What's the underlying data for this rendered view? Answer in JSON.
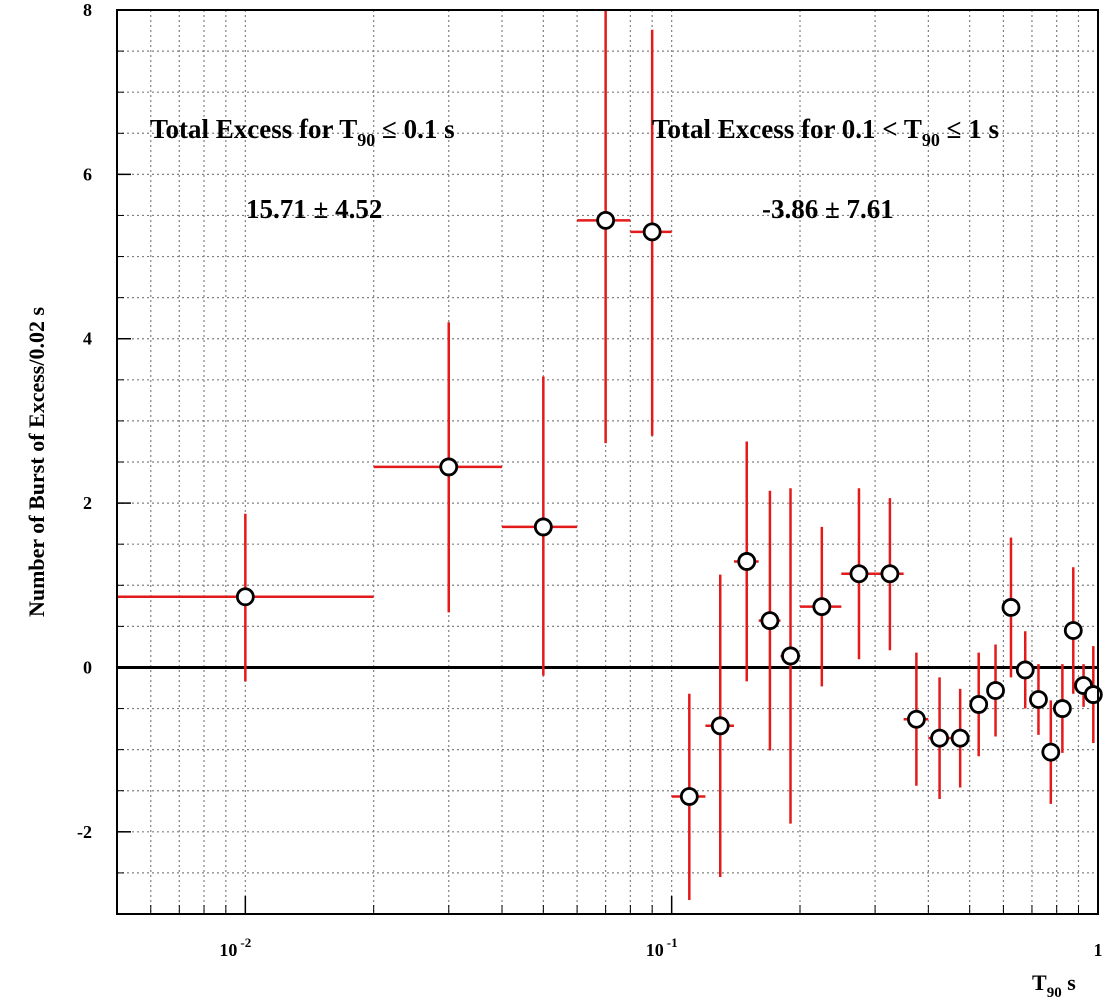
{
  "chart_data": {
    "type": "scatter",
    "title": "",
    "ylabel": "Number of Burst of Excess/0.02 s",
    "xlabel": {
      "main": "T",
      "sub": "90",
      "unit": " s"
    },
    "x_scale": "log",
    "xlim": [
      0.005,
      1.0
    ],
    "ylim": [
      -3,
      8
    ],
    "grid": true,
    "grid_style": "dotted",
    "x_ticks": [
      {
        "value": 0.01,
        "base": "10",
        "exp": "-2"
      },
      {
        "value": 0.1,
        "base": "10",
        "exp": "-1"
      },
      {
        "value": 1.0,
        "base": "1",
        "exp": ""
      }
    ],
    "y_ticks": [
      {
        "value": -2,
        "label": "-2"
      },
      {
        "value": 0,
        "label": "0"
      },
      {
        "value": 2,
        "label": "2"
      },
      {
        "value": 4,
        "label": "4"
      },
      {
        "value": 6,
        "label": "6"
      },
      {
        "value": 8,
        "label": "8"
      }
    ],
    "reference_line_y": 0,
    "annotations": {
      "left_title": {
        "pre": "Total Excess for  T",
        "sub": "90",
        "post": " ≤ 0.1 s"
      },
      "left_value": "15.71 ± 4.52",
      "right_title": {
        "pre": "Total Excess for 0.1 < T",
        "sub": "90",
        "post": " ≤ 1 s"
      },
      "right_value": "-3.86  ± 7.61"
    },
    "colors": {
      "errorbar": "#e31a1a",
      "marker": "#000000",
      "zero_line": "#000000",
      "grid": "#808080"
    },
    "series": [
      {
        "points": [
          {
            "x": 0.01,
            "xlo": 0.005,
            "xhi": 0.02,
            "y": 0.86,
            "ylo": -0.17,
            "yhi": 1.87
          },
          {
            "x": 0.03,
            "xlo": 0.02,
            "xhi": 0.04,
            "y": 2.44,
            "ylo": 0.67,
            "yhi": 4.2
          },
          {
            "x": 0.05,
            "xlo": 0.04,
            "xhi": 0.06,
            "y": 1.71,
            "ylo": -0.1,
            "yhi": 3.54
          },
          {
            "x": 0.07,
            "xlo": 0.06,
            "xhi": 0.08,
            "y": 5.44,
            "ylo": 2.73,
            "yhi": 8.0
          },
          {
            "x": 0.09,
            "xlo": 0.08,
            "xhi": 0.1,
            "y": 5.3,
            "ylo": 2.82,
            "yhi": 7.76
          },
          {
            "x": 0.11,
            "xlo": 0.1,
            "xhi": 0.12,
            "y": -1.57,
            "ylo": -2.83,
            "yhi": -0.32
          },
          {
            "x": 0.13,
            "xlo": 0.12,
            "xhi": 0.14,
            "y": -0.71,
            "ylo": -2.55,
            "yhi": 1.13
          },
          {
            "x": 0.15,
            "xlo": 0.14,
            "xhi": 0.16,
            "y": 1.29,
            "ylo": -0.17,
            "yhi": 2.75
          },
          {
            "x": 0.17,
            "xlo": 0.16,
            "xhi": 0.18,
            "y": 0.57,
            "ylo": -1.01,
            "yhi": 2.15
          },
          {
            "x": 0.19,
            "xlo": 0.18,
            "xhi": 0.2,
            "y": 0.14,
            "ylo": -1.9,
            "yhi": 2.18
          },
          {
            "x": 0.225,
            "xlo": 0.2,
            "xhi": 0.25,
            "y": 0.74,
            "ylo": -0.23,
            "yhi": 1.71
          },
          {
            "x": 0.275,
            "xlo": 0.25,
            "xhi": 0.3,
            "y": 1.14,
            "ylo": 0.1,
            "yhi": 2.18
          },
          {
            "x": 0.325,
            "xlo": 0.3,
            "xhi": 0.35,
            "y": 1.14,
            "ylo": 0.21,
            "yhi": 2.06
          },
          {
            "x": 0.375,
            "xlo": 0.35,
            "xhi": 0.4,
            "y": -0.63,
            "ylo": -1.44,
            "yhi": 0.18
          },
          {
            "x": 0.425,
            "xlo": 0.4,
            "xhi": 0.45,
            "y": -0.86,
            "ylo": -1.6,
            "yhi": -0.12
          },
          {
            "x": 0.475,
            "xlo": 0.45,
            "xhi": 0.5,
            "y": -0.86,
            "ylo": -1.46,
            "yhi": -0.26
          },
          {
            "x": 0.525,
            "xlo": 0.5,
            "xhi": 0.55,
            "y": -0.45,
            "ylo": -1.08,
            "yhi": 0.18
          },
          {
            "x": 0.575,
            "xlo": 0.55,
            "xhi": 0.6,
            "y": -0.28,
            "ylo": -0.84,
            "yhi": 0.28
          },
          {
            "x": 0.625,
            "xlo": 0.6,
            "xhi": 0.65,
            "y": 0.73,
            "ylo": -0.12,
            "yhi": 1.58
          },
          {
            "x": 0.675,
            "xlo": 0.65,
            "xhi": 0.7,
            "y": -0.03,
            "ylo": -0.5,
            "yhi": 0.44
          },
          {
            "x": 0.725,
            "xlo": 0.7,
            "xhi": 0.75,
            "y": -0.39,
            "ylo": -0.82,
            "yhi": 0.04
          },
          {
            "x": 0.775,
            "xlo": 0.75,
            "xhi": 0.8,
            "y": -1.03,
            "ylo": -1.66,
            "yhi": -0.4
          },
          {
            "x": 0.825,
            "xlo": 0.8,
            "xhi": 0.85,
            "y": -0.5,
            "ylo": -1.04,
            "yhi": 0.04
          },
          {
            "x": 0.875,
            "xlo": 0.85,
            "xhi": 0.9,
            "y": 0.45,
            "ylo": -0.32,
            "yhi": 1.22
          },
          {
            "x": 0.925,
            "xlo": 0.9,
            "xhi": 0.95,
            "y": -0.22,
            "ylo": -0.48,
            "yhi": 0.04
          },
          {
            "x": 0.975,
            "xlo": 0.95,
            "xhi": 1.0,
            "y": -0.33,
            "ylo": -0.92,
            "yhi": 0.26
          }
        ]
      }
    ]
  }
}
